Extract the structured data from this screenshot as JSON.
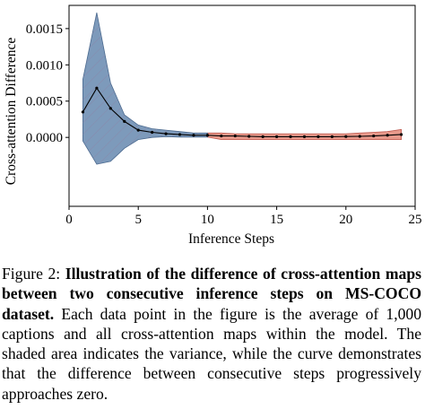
{
  "chart_data": {
    "type": "line",
    "xlabel": "Inference Steps",
    "ylabel": "Cross-attention Difference",
    "xlim": [
      0,
      25
    ],
    "ylim": [
      -0.00095,
      0.00182
    ],
    "xticks": [
      0,
      5,
      10,
      15,
      20,
      25
    ],
    "yticks": [
      0.0,
      0.0005,
      0.001,
      0.0015
    ],
    "xtick_labels": [
      "0",
      "5",
      "10",
      "15",
      "20",
      "25"
    ],
    "ytick_labels": [
      "0.0000",
      "0.0005",
      "0.0010",
      "0.0015"
    ],
    "grid": false,
    "series": [
      {
        "x": [
          1,
          2,
          3,
          4,
          5,
          6,
          7,
          8,
          9,
          10,
          11,
          12,
          13,
          14,
          15,
          16,
          17,
          18,
          19,
          20,
          21,
          22,
          23,
          24
        ],
        "y": [
          0.00035,
          0.00068,
          0.0004,
          0.00022,
          0.0001,
          7e-05,
          5e-05,
          4e-05,
          3e-05,
          3e-05,
          2e-05,
          2e-05,
          1.5e-05,
          1e-05,
          1e-05,
          1e-05,
          1e-05,
          1e-05,
          1e-05,
          1.2e-05,
          1.5e-05,
          2e-05,
          3e-05,
          4e-05
        ],
        "lower": [
          -5e-05,
          -0.00037,
          -0.00033,
          -0.00015,
          -3e-05,
          0.0,
          1e-05,
          5e-06,
          5e-06,
          5e-06,
          -3e-05,
          -3e-05,
          -3e-05,
          -3e-05,
          -3e-05,
          -3e-05,
          -3e-05,
          -3e-05,
          -3e-05,
          -3e-05,
          -3e-05,
          -3e-05,
          -3e-05,
          -3e-05
        ],
        "upper": [
          0.0008,
          0.00172,
          0.00075,
          0.00031,
          0.00017,
          0.00012,
          0.0001,
          8e-05,
          6e-05,
          6e-05,
          6e-05,
          5e-05,
          5e-05,
          5e-05,
          5e-05,
          5e-05,
          5e-05,
          5e-05,
          5e-05,
          5e-05,
          6e-05,
          7e-05,
          8e-05,
          0.00011
        ]
      }
    ],
    "band_split_x": 10,
    "colors": {
      "band_early": "#6f8fb4",
      "band_late": "#e48878",
      "line": "#000000"
    }
  },
  "caption": {
    "label": "Figure 2:",
    "bold": "Illustration of the difference of cross-attention maps between two consecutive inference steps on MS-COCO dataset.",
    "text": "Each data point in the figure is the average of 1,000 captions and all cross-attention maps within the model. The shaded area indicates the variance, while the curve demonstrates that the difference between consecutive steps progressively approaches zero."
  }
}
